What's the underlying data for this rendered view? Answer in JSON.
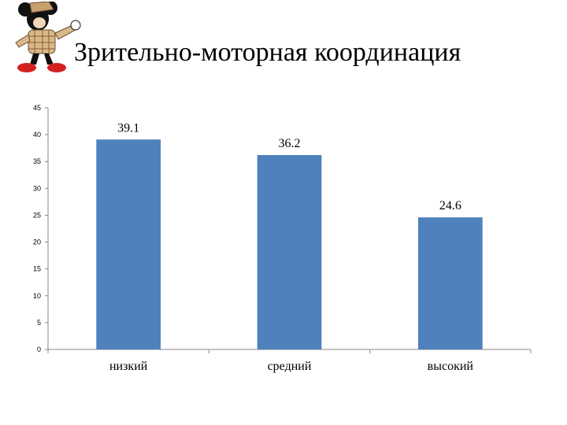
{
  "slide": {
    "title": "Зрительно-моторная координация"
  },
  "chart_data": {
    "type": "bar",
    "title": "Зрительно-моторная координация",
    "categories": [
      "низкий",
      "средний",
      "высокий"
    ],
    "values": [
      39.1,
      36.2,
      24.6
    ],
    "data_labels": [
      "39.1",
      "36.2",
      "24.6"
    ],
    "ylim": [
      0,
      45
    ],
    "yticks": [
      0,
      5,
      10,
      15,
      20,
      25,
      30,
      35,
      40,
      45
    ],
    "grid": false,
    "legend": "none",
    "bar_color": "#4F81BD"
  }
}
